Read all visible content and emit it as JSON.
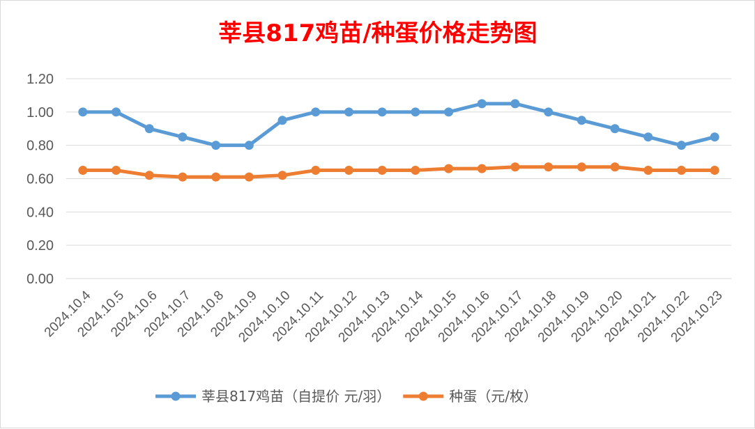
{
  "chart_data": {
    "type": "line",
    "title": "莘县817鸡苗/种蛋价格走势图",
    "xlabel": "",
    "ylabel": "",
    "ylim": [
      0,
      1.2
    ],
    "yticks": [
      "0.00",
      "0.20",
      "0.40",
      "0.60",
      "0.80",
      "1.00",
      "1.20"
    ],
    "grid": true,
    "legend_position": "bottom",
    "categories": [
      "2024.10.4",
      "2024.10.5",
      "2024.10.6",
      "2024.10.7",
      "2024.10.8",
      "2024.10.9",
      "2024.10.10",
      "2024.10.11",
      "2024.10.12",
      "2024.10.13",
      "2024.10.14",
      "2024.10.15",
      "2024.10.16",
      "2024.10.17",
      "2024.10.18",
      "2024.10.19",
      "2024.10.20",
      "2024.10.21",
      "2024.10.22",
      "2024.10.23"
    ],
    "series": [
      {
        "name": "莘县817鸡苗（自提价 元/羽）",
        "color": "#5b9bd5",
        "values": [
          1.0,
          1.0,
          0.9,
          0.85,
          0.8,
          0.8,
          0.95,
          1.0,
          1.0,
          1.0,
          1.0,
          1.0,
          1.05,
          1.05,
          1.0,
          0.95,
          0.9,
          0.85,
          0.8,
          0.85
        ]
      },
      {
        "name": "种蛋（元/枚）",
        "color": "#ed7d31",
        "values": [
          0.65,
          0.65,
          0.62,
          0.61,
          0.61,
          0.61,
          0.62,
          0.65,
          0.65,
          0.65,
          0.65,
          0.66,
          0.66,
          0.67,
          0.67,
          0.67,
          0.67,
          0.65,
          0.65,
          0.65
        ]
      }
    ]
  }
}
